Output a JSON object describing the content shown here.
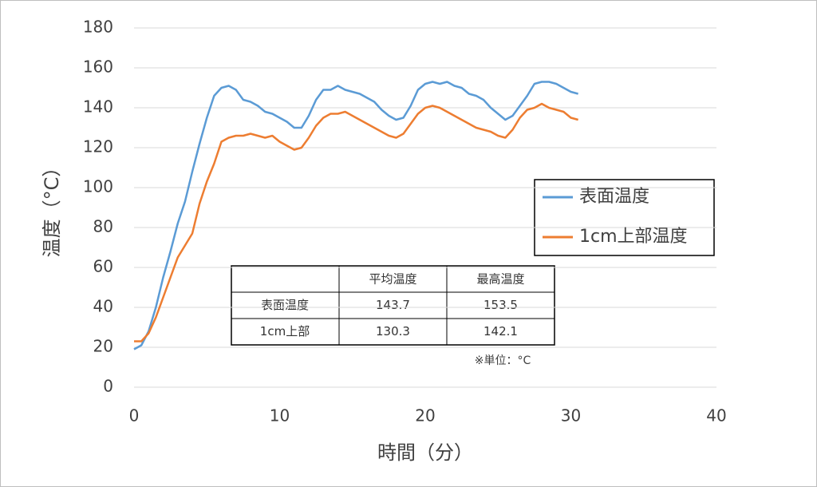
{
  "chart_data": {
    "type": "line",
    "x_label": "時間（分）",
    "y_label": "温度（°C）",
    "xlim": [
      0,
      40
    ],
    "xticks": [
      0,
      10,
      20,
      30,
      40
    ],
    "ylim": [
      0,
      180
    ],
    "yticks": [
      0,
      20,
      40,
      60,
      80,
      100,
      120,
      140,
      160,
      180
    ],
    "grid": true,
    "legend": "right",
    "x": [
      0,
      0.5,
      1,
      1.5,
      2,
      2.5,
      3,
      3.5,
      4,
      4.5,
      5,
      5.5,
      6,
      6.5,
      7,
      7.5,
      8,
      8.5,
      9,
      9.5,
      10,
      10.5,
      11,
      11.5,
      12,
      12.5,
      13,
      13.5,
      14,
      14.5,
      15,
      15.5,
      16,
      16.5,
      17,
      17.5,
      18,
      18.5,
      19,
      19.5,
      20,
      20.5,
      21,
      21.5,
      22,
      22.5,
      23,
      23.5,
      24,
      24.5,
      25,
      25.5,
      26,
      26.5,
      27,
      27.5,
      28,
      28.5,
      29,
      29.5,
      30,
      30.5
    ],
    "series": [
      {
        "name": "表面温度",
        "color": "#5b9bd5",
        "values": [
          19,
          21,
          28,
          40,
          55,
          68,
          82,
          93,
          108,
          122,
          135,
          146,
          150,
          151,
          149,
          144,
          143,
          141,
          138,
          137,
          135,
          133,
          130,
          130,
          136,
          144,
          149,
          149,
          151,
          149,
          148,
          147,
          145,
          143,
          139,
          136,
          134,
          135,
          141,
          149,
          152,
          153,
          152,
          153,
          151,
          150,
          147,
          146,
          144,
          140,
          137,
          134,
          136,
          141,
          146,
          152,
          153,
          153,
          152,
          150,
          148,
          147
        ]
      },
      {
        "name": "1cm上部温度",
        "color": "#ed7d31",
        "values": [
          23,
          23,
          27,
          35,
          45,
          55,
          65,
          71,
          77,
          92,
          103,
          112,
          123,
          125,
          126,
          126,
          127,
          126,
          125,
          126,
          123,
          121,
          119,
          120,
          125,
          131,
          135,
          137,
          137,
          138,
          136,
          134,
          132,
          130,
          128,
          126,
          125,
          127,
          132,
          137,
          140,
          141,
          140,
          138,
          136,
          134,
          132,
          130,
          129,
          128,
          126,
          125,
          129,
          135,
          139,
          140,
          142,
          140,
          139,
          138,
          135,
          134
        ]
      }
    ],
    "table": {
      "columns": [
        "平均温度",
        "最高温度"
      ],
      "rows": [
        {
          "label": "表面温度",
          "cells": [
            143.7,
            153.5
          ]
        },
        {
          "label": "1cm上部",
          "cells": [
            130.3,
            142.1
          ]
        }
      ],
      "note": "※単位：°C"
    }
  }
}
